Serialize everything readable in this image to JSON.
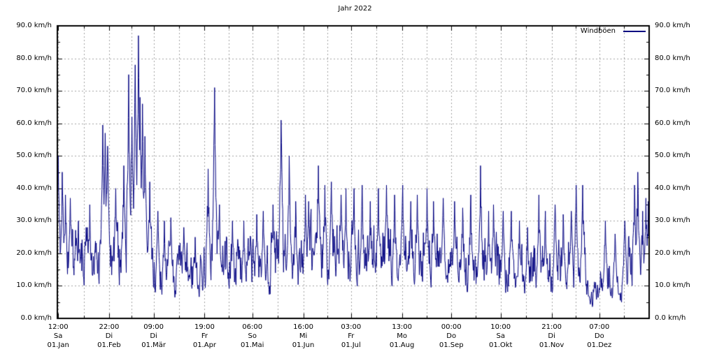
{
  "window": {
    "background": "#ffffff"
  },
  "chart_data": {
    "type": "line",
    "title": "Jahr 2022",
    "legend": {
      "label": "Windböen",
      "position": "inside-top-right"
    },
    "unit": "km/h",
    "ylim": [
      0,
      90
    ],
    "ytick_step": 10,
    "ytick_minor_step": 5,
    "y_axis_mirrored": true,
    "ytick_labels": [
      "0.0 km/h",
      "10.0 km/h",
      "20.0 km/h",
      "30.0 km/h",
      "40.0 km/h",
      "50.0 km/h",
      "60.0 km/h",
      "70.0 km/h",
      "80.0 km/h",
      "90.0 km/h"
    ],
    "grid": {
      "horizontal": "major",
      "vertical": "major-and-half-month",
      "style": "dashed"
    },
    "xticks": [
      {
        "day": 0.5,
        "time": "12:00",
        "weekday": "Sa",
        "date": "01.Jan"
      },
      {
        "day": 31.917,
        "time": "22:00",
        "weekday": "Di",
        "date": "01.Feb"
      },
      {
        "day": 59.375,
        "time": "09:00",
        "weekday": "Di",
        "date": "01.Mär"
      },
      {
        "day": 90.792,
        "time": "19:00",
        "weekday": "Fr",
        "date": "01.Apr"
      },
      {
        "day": 120.25,
        "time": "06:00",
        "weekday": "So",
        "date": "01.Mai"
      },
      {
        "day": 151.667,
        "time": "16:00",
        "weekday": "Mi",
        "date": "01.Jun"
      },
      {
        "day": 181.125,
        "time": "03:00",
        "weekday": "Fr",
        "date": "01.Jul"
      },
      {
        "day": 212.542,
        "time": "13:00",
        "weekday": "Mo",
        "date": "01.Aug"
      },
      {
        "day": 243.0,
        "time": "00:00",
        "weekday": "Do",
        "date": "01.Sep"
      },
      {
        "day": 273.417,
        "time": "10:00",
        "weekday": "Sa",
        "date": "01.Okt"
      },
      {
        "day": 304.875,
        "time": "21:00",
        "weekday": "Di",
        "date": "01.Nov"
      },
      {
        "day": 334.292,
        "time": "07:00",
        "weekday": "Do",
        "date": "01.Dez"
      }
    ],
    "colors": {
      "line": "#000080",
      "grid": "#a0a0a0",
      "axis": "#000000",
      "text": "#000000"
    },
    "series": [
      {
        "name": "Windböen",
        "color": "#000080",
        "days": 365,
        "points_per_day": 4,
        "seed": 7,
        "min_value": 0.8,
        "max_value": 87,
        "envelope_segments": [
          {
            "from": 0,
            "to": 31,
            "lo": 4,
            "hi": 34
          },
          {
            "from": 31,
            "to": 59,
            "lo": 5,
            "hi": 36
          },
          {
            "from": 59,
            "to": 90,
            "lo": 4,
            "hi": 27
          },
          {
            "from": 90,
            "to": 120,
            "lo": 6,
            "hi": 31
          },
          {
            "from": 120,
            "to": 151,
            "lo": 5,
            "hi": 32
          },
          {
            "from": 151,
            "to": 181,
            "lo": 7,
            "hi": 37
          },
          {
            "from": 181,
            "to": 212,
            "lo": 7,
            "hi": 36
          },
          {
            "from": 212,
            "to": 243,
            "lo": 7,
            "hi": 35
          },
          {
            "from": 243,
            "to": 273,
            "lo": 5,
            "hi": 33
          },
          {
            "from": 273,
            "to": 304,
            "lo": 5,
            "hi": 30
          },
          {
            "from": 304,
            "to": 326,
            "lo": 4,
            "hi": 31
          },
          {
            "from": 326,
            "to": 335,
            "lo": 2,
            "hi": 14
          },
          {
            "from": 335,
            "to": 341,
            "lo": 4,
            "hi": 25
          },
          {
            "from": 341,
            "to": 352,
            "lo": 3,
            "hi": 19
          },
          {
            "from": 352,
            "to": 365,
            "lo": 6,
            "hi": 33
          }
        ],
        "peaks": [
          [
            0.6,
            50
          ],
          [
            3,
            45
          ],
          [
            5,
            38
          ],
          [
            8,
            37
          ],
          [
            13,
            30
          ],
          [
            20,
            35
          ],
          [
            28,
            59.5
          ],
          [
            29.5,
            57
          ],
          [
            31,
            53
          ],
          [
            36,
            40
          ],
          [
            41,
            47
          ],
          [
            44,
            75
          ],
          [
            46,
            62
          ],
          [
            48,
            78
          ],
          [
            50,
            87
          ],
          [
            51,
            68
          ],
          [
            52.5,
            66
          ],
          [
            54,
            56
          ],
          [
            57,
            42
          ],
          [
            62,
            33
          ],
          [
            66,
            30
          ],
          [
            70,
            31
          ],
          [
            78,
            28
          ],
          [
            85,
            25
          ],
          [
            93,
            46
          ],
          [
            97,
            71
          ],
          [
            100,
            35
          ],
          [
            108,
            30
          ],
          [
            115,
            30
          ],
          [
            123,
            32
          ],
          [
            127,
            33
          ],
          [
            133,
            35
          ],
          [
            138,
            61
          ],
          [
            143,
            50
          ],
          [
            147,
            36
          ],
          [
            153,
            38
          ],
          [
            155,
            36
          ],
          [
            161,
            47
          ],
          [
            165,
            41
          ],
          [
            169,
            42
          ],
          [
            175,
            38
          ],
          [
            178,
            40
          ],
          [
            183,
            40
          ],
          [
            188,
            41
          ],
          [
            193,
            36
          ],
          [
            198,
            40
          ],
          [
            203,
            41
          ],
          [
            208,
            38
          ],
          [
            213,
            41
          ],
          [
            218,
            36
          ],
          [
            222,
            38
          ],
          [
            228,
            40
          ],
          [
            232,
            36
          ],
          [
            238,
            37
          ],
          [
            245,
            36
          ],
          [
            250,
            34
          ],
          [
            255,
            38
          ],
          [
            261,
            47
          ],
          [
            266,
            33
          ],
          [
            269,
            35
          ],
          [
            275,
            33
          ],
          [
            280,
            33
          ],
          [
            285,
            30
          ],
          [
            290,
            28
          ],
          [
            297,
            38
          ],
          [
            301,
            33
          ],
          [
            307,
            35
          ],
          [
            312,
            32
          ],
          [
            317,
            33
          ],
          [
            320,
            41
          ],
          [
            324,
            41
          ],
          [
            338,
            30
          ],
          [
            344,
            26
          ],
          [
            350,
            30
          ],
          [
            356,
            41
          ],
          [
            358,
            45
          ],
          [
            361,
            33
          ],
          [
            363,
            37
          ],
          [
            364.5,
            36
          ]
        ]
      }
    ]
  }
}
